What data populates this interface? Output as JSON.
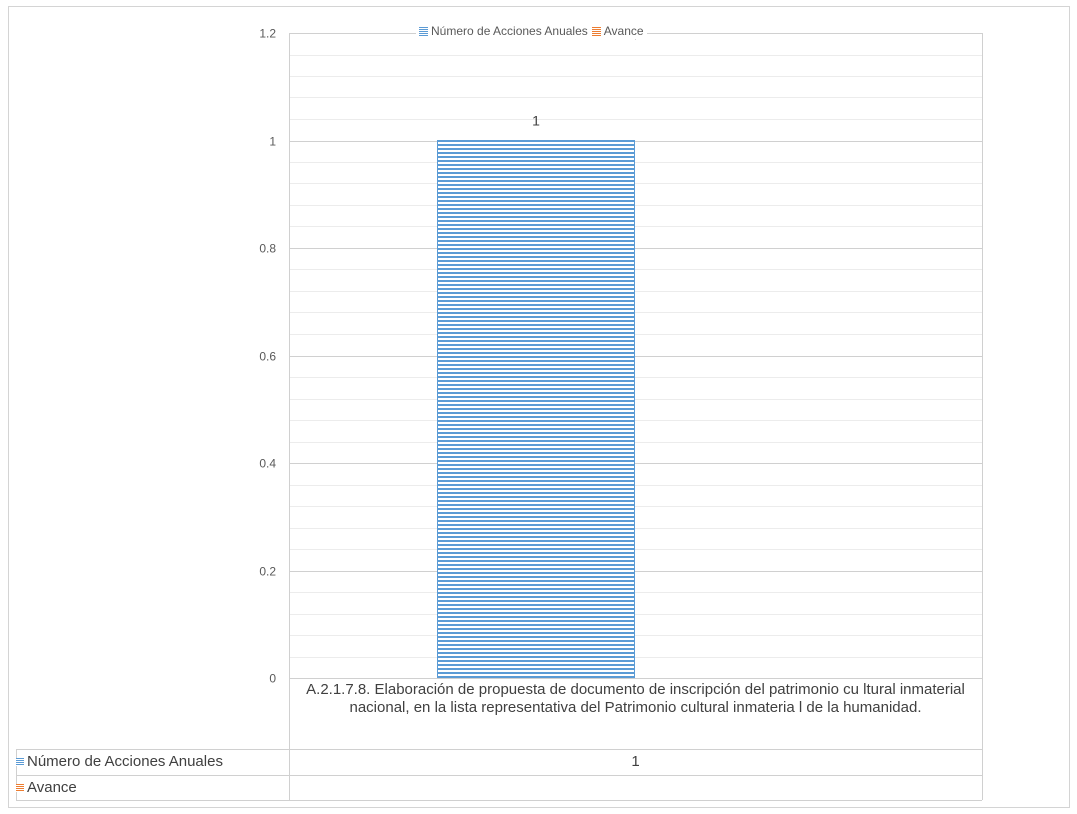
{
  "chart_data": {
    "type": "bar",
    "categories": [
      "A.2.1.7.8. Elaboración de propuesta de documento de inscripción del patrimonio cu ltural inmaterial nacional, en la lista representativa del Patrimonio cultural inmateria l de la humanidad."
    ],
    "series": [
      {
        "name": "Número de Acciones Anuales",
        "values": [
          1
        ],
        "color": "#5b9bd5",
        "pattern": "horizontal-stripes"
      },
      {
        "name": "Avance",
        "values": [
          null
        ],
        "color": "#ed7d31",
        "pattern": "horizontal-stripes"
      }
    ],
    "data_labels": [
      "1"
    ],
    "ylim": [
      0,
      1.2
    ],
    "yticks": [
      "0",
      "0.2",
      "0.4",
      "0.6",
      "0.8",
      "1",
      "1.2"
    ],
    "ytick_values": [
      0,
      0.2,
      0.4,
      0.6,
      0.8,
      1,
      1.2
    ],
    "minor_gridlines_per_major": 5,
    "grid": true,
    "legend_position": "top",
    "data_table": {
      "rows": [
        {
          "label": "Número de Acciones Anuales",
          "value": "1"
        },
        {
          "label": "Avance",
          "value": ""
        }
      ]
    }
  }
}
